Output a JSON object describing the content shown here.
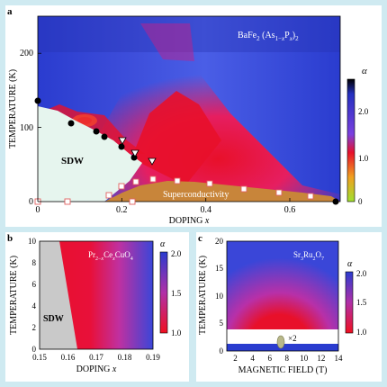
{
  "panels": {
    "a": {
      "letter": "a",
      "compound_html": "BaFe<sub>2</sub> (As<sub>1−x</sub>P<sub>x</sub>)<sub>2</sub>",
      "sdw_label": "SDW",
      "sc_label": "Superconductivity",
      "colorbar_label": "α"
    },
    "b": {
      "letter": "b",
      "compound": "Pr2−xCexCuO4",
      "sdw_label": "SDW",
      "colorbar_label": "α"
    },
    "c": {
      "letter": "c",
      "compound": "Sr3Ru2O7",
      "annotation": "×2",
      "colorbar_label": "α"
    }
  },
  "colors": {
    "background": "#cfeaf1",
    "alpha_high": "#2a3ccf",
    "alpha_mid": "#e8102a",
    "alpha_low": "#a0e030",
    "alpha_max": "#000000",
    "sdw_a": "#e6f5ee",
    "sdw_b": "#c9c9c9",
    "superconductivity": "#c8853a"
  },
  "chart_data": [
    {
      "panel": "a",
      "type": "heatmap",
      "xlabel": "DOPING x",
      "ylabel": "TEMPERATURE (K)",
      "xlim": [
        0,
        0.72
      ],
      "ylim": [
        0,
        250
      ],
      "xticks": [
        0,
        0.2,
        0.4,
        0.6
      ],
      "yticks": [
        0,
        100,
        200
      ],
      "colorbar": {
        "label": "α",
        "ticks": [
          0,
          1.0,
          2.0
        ],
        "range": [
          0,
          2.5
        ]
      },
      "tc_points": [
        [
          0.19,
          18
        ],
        [
          0.23,
          28
        ],
        [
          0.27,
          29
        ],
        [
          0.33,
          28
        ],
        [
          0.41,
          25
        ],
        [
          0.49,
          18
        ],
        [
          0.56,
          13
        ],
        [
          0.64,
          8
        ]
      ],
      "open_square_points": [
        [
          0.0,
          0
        ],
        [
          0.07,
          0
        ],
        [
          0.2,
          18
        ],
        [
          0.25,
          0
        ]
      ],
      "filled_circles": [
        [
          0.0,
          133
        ],
        [
          0.08,
          107
        ],
        [
          0.14,
          97
        ],
        [
          0.16,
          88
        ],
        [
          0.2,
          70
        ],
        [
          0.23,
          55
        ],
        [
          0.71,
          0
        ]
      ],
      "open_triangles": [
        [
          0.2,
          85
        ],
        [
          0.23,
          68
        ],
        [
          0.27,
          55
        ]
      ]
    },
    {
      "panel": "b",
      "type": "heatmap",
      "xlabel": "DOPING x",
      "ylabel": "TEMPERATURE (K)",
      "xlim": [
        0.15,
        0.19
      ],
      "ylim": [
        0,
        10
      ],
      "xticks": [
        0.15,
        0.16,
        0.17,
        0.18,
        0.19
      ],
      "yticks": [
        0,
        2,
        4,
        6,
        8,
        10
      ],
      "colorbar": {
        "label": "α",
        "ticks": [
          1.0,
          1.5,
          2.0
        ],
        "range": [
          1.0,
          2.0
        ]
      },
      "sdw_boundary": [
        [
          0.157,
          10
        ],
        [
          0.164,
          0
        ]
      ]
    },
    {
      "panel": "c",
      "type": "heatmap",
      "xlabel": "MAGNETIC FIELD (T)",
      "ylabel": "TEMPERATURE (K)",
      "xlim": [
        1,
        14
      ],
      "ylim": [
        0,
        20
      ],
      "xticks": [
        2,
        4,
        6,
        8,
        10,
        12,
        14
      ],
      "yticks": [
        0,
        5,
        10,
        15,
        20
      ],
      "colorbar": {
        "label": "α",
        "ticks": [
          1.0,
          1.5,
          2.0
        ],
        "range": [
          1.0,
          2.0
        ]
      },
      "critical_field": 7.9
    }
  ]
}
